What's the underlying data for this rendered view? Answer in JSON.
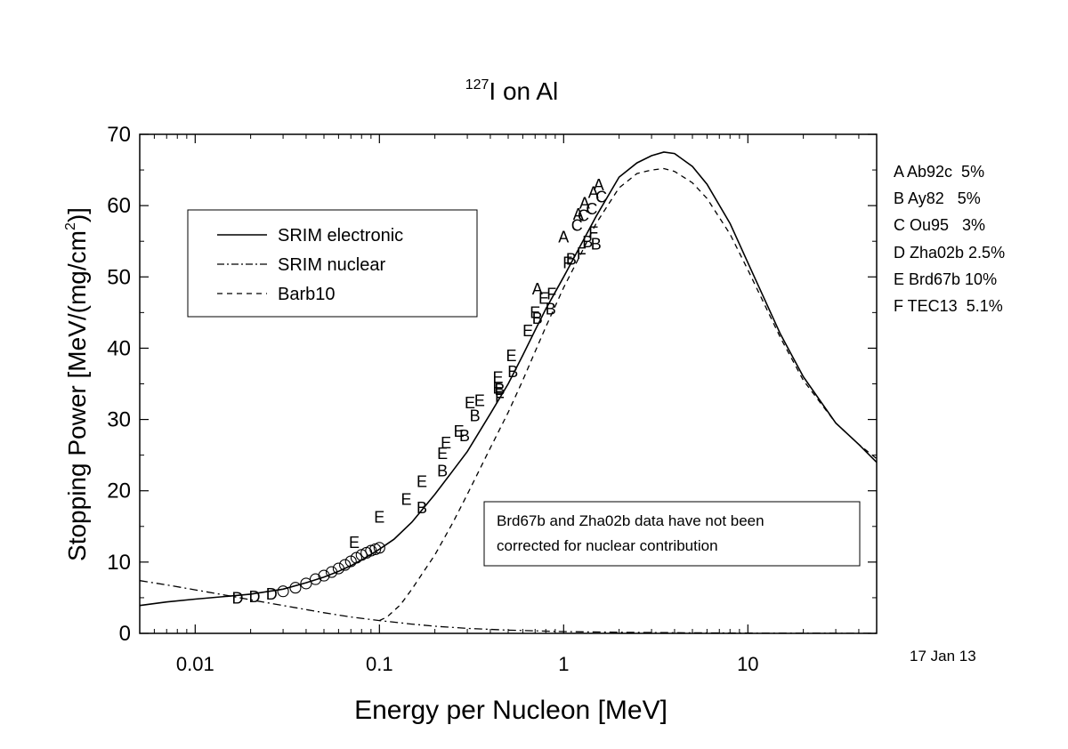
{
  "chart_data": {
    "type": "line",
    "title_superscript": "127",
    "title_main": "I on Al",
    "xlabel": "Energy per Nucleon [MeV]",
    "ylabel_main": "Stopping Power [MeV/(mg/cm",
    "ylabel_sup": "2",
    "ylabel_end": ")]",
    "x_scale": "log",
    "xlim": [
      0.005,
      50
    ],
    "ylim": [
      0,
      70
    ],
    "x_ticks": [
      {
        "v": 0.01,
        "label": "0.01"
      },
      {
        "v": 0.1,
        "label": "0.1"
      },
      {
        "v": 1,
        "label": "1"
      },
      {
        "v": 10,
        "label": "10"
      }
    ],
    "y_ticks": [
      {
        "v": 0,
        "label": "0"
      },
      {
        "v": 10,
        "label": "10"
      },
      {
        "v": 20,
        "label": "20"
      },
      {
        "v": 30,
        "label": "30"
      },
      {
        "v": 40,
        "label": "40"
      },
      {
        "v": 50,
        "label": "50"
      },
      {
        "v": 60,
        "label": "60"
      },
      {
        "v": 70,
        "label": "70"
      }
    ],
    "legend": [
      {
        "label": "SRIM electronic",
        "dash": "solid"
      },
      {
        "label": "SRIM nuclear",
        "dash": "dashdot"
      },
      {
        "label": "Barb10",
        "dash": "dashed"
      }
    ],
    "note_lines": [
      "Brd67b and Zha02b data have not been",
      "corrected for nuclear contribution"
    ],
    "datasets_legend": [
      "A Ab92c  5%",
      "B Ay82   5%",
      "C Ou95   3%",
      "D Zha02b 2.5%",
      "E Brd67b 10%",
      "F TEC13  5.1%"
    ],
    "date": "17 Jan 13",
    "series": [
      {
        "name": "SRIM electronic",
        "dash": "solid",
        "points": [
          [
            0.005,
            3.9
          ],
          [
            0.007,
            4.4
          ],
          [
            0.01,
            4.8
          ],
          [
            0.015,
            5.2
          ],
          [
            0.02,
            5.5
          ],
          [
            0.03,
            6.2
          ],
          [
            0.04,
            7.1
          ],
          [
            0.05,
            7.9
          ],
          [
            0.06,
            8.7
          ],
          [
            0.07,
            9.5
          ],
          [
            0.08,
            10.3
          ],
          [
            0.1,
            11.8
          ],
          [
            0.12,
            13.2
          ],
          [
            0.15,
            15.6
          ],
          [
            0.2,
            19.5
          ],
          [
            0.25,
            22.8
          ],
          [
            0.3,
            25.5
          ],
          [
            0.4,
            30.8
          ],
          [
            0.5,
            35.0
          ],
          [
            0.6,
            39.0
          ],
          [
            0.7,
            42.5
          ],
          [
            0.8,
            45.5
          ],
          [
            1.0,
            50.0
          ],
          [
            1.2,
            53.8
          ],
          [
            1.5,
            58.5
          ],
          [
            2.0,
            64.0
          ],
          [
            2.5,
            66.0
          ],
          [
            3.0,
            67.0
          ],
          [
            3.5,
            67.5
          ],
          [
            4.0,
            67.3
          ],
          [
            5.0,
            65.5
          ],
          [
            6.0,
            63.0
          ],
          [
            8.0,
            57.5
          ],
          [
            10.0,
            52.0
          ],
          [
            15.0,
            42.0
          ],
          [
            20.0,
            36.0
          ],
          [
            30.0,
            29.5
          ],
          [
            40.0,
            26.5
          ],
          [
            50.0,
            24.0
          ]
        ]
      },
      {
        "name": "SRIM nuclear",
        "dash": "dashdot",
        "points": [
          [
            0.005,
            7.4
          ],
          [
            0.007,
            6.8
          ],
          [
            0.01,
            6.1
          ],
          [
            0.015,
            5.3
          ],
          [
            0.02,
            4.7
          ],
          [
            0.03,
            3.9
          ],
          [
            0.05,
            2.9
          ],
          [
            0.07,
            2.3
          ],
          [
            0.1,
            1.8
          ],
          [
            0.15,
            1.3
          ],
          [
            0.2,
            1.0
          ],
          [
            0.3,
            0.7
          ],
          [
            0.5,
            0.45
          ],
          [
            1.0,
            0.25
          ],
          [
            2.0,
            0.15
          ],
          [
            5.0,
            0.08
          ],
          [
            10.0,
            0.04
          ],
          [
            50.0,
            0.01
          ]
        ]
      },
      {
        "name": "Barb10",
        "dash": "dashed",
        "points": [
          [
            0.1,
            1.8
          ],
          [
            0.11,
            2.3
          ],
          [
            0.13,
            4.0
          ],
          [
            0.15,
            6.2
          ],
          [
            0.2,
            11.0
          ],
          [
            0.25,
            15.5
          ],
          [
            0.3,
            19.5
          ],
          [
            0.4,
            26.0
          ],
          [
            0.5,
            31.0
          ],
          [
            0.6,
            35.5
          ],
          [
            0.7,
            39.5
          ],
          [
            0.8,
            43.0
          ],
          [
            1.0,
            48.5
          ],
          [
            1.2,
            52.5
          ],
          [
            1.5,
            57.5
          ],
          [
            2.0,
            62.5
          ],
          [
            2.5,
            64.5
          ],
          [
            3.0,
            65.0
          ],
          [
            3.5,
            65.2
          ],
          [
            4.0,
            64.8
          ],
          [
            5.0,
            63.2
          ],
          [
            6.0,
            61.0
          ],
          [
            8.0,
            56.0
          ],
          [
            10.0,
            51.0
          ],
          [
            15.0,
            41.5
          ],
          [
            20.0,
            35.5
          ],
          [
            30.0,
            29.5
          ],
          [
            40.0,
            26.5
          ],
          [
            50.0,
            24.5
          ]
        ]
      }
    ],
    "data_points": [
      {
        "m": "D",
        "x": 0.017,
        "y": 4.9
      },
      {
        "m": "D",
        "x": 0.021,
        "y": 5.1
      },
      {
        "m": "D",
        "x": 0.026,
        "y": 5.5
      },
      {
        "m": "O",
        "x": 0.03,
        "y": 5.9
      },
      {
        "m": "O",
        "x": 0.035,
        "y": 6.4
      },
      {
        "m": "O",
        "x": 0.04,
        "y": 7.0
      },
      {
        "m": "O",
        "x": 0.045,
        "y": 7.6
      },
      {
        "m": "O",
        "x": 0.05,
        "y": 8.1
      },
      {
        "m": "O",
        "x": 0.055,
        "y": 8.6
      },
      {
        "m": "O",
        "x": 0.06,
        "y": 9.1
      },
      {
        "m": "O",
        "x": 0.065,
        "y": 9.6
      },
      {
        "m": "O",
        "x": 0.07,
        "y": 10.1
      },
      {
        "m": "O",
        "x": 0.075,
        "y": 10.6
      },
      {
        "m": "O",
        "x": 0.08,
        "y": 11.0
      },
      {
        "m": "O",
        "x": 0.085,
        "y": 11.3
      },
      {
        "m": "O",
        "x": 0.09,
        "y": 11.6
      },
      {
        "m": "O",
        "x": 0.095,
        "y": 11.8
      },
      {
        "m": "O",
        "x": 0.1,
        "y": 12.0
      },
      {
        "m": "E",
        "x": 0.073,
        "y": 12.7
      },
      {
        "m": "E",
        "x": 0.1,
        "y": 16.3
      },
      {
        "m": "E",
        "x": 0.14,
        "y": 18.8
      },
      {
        "m": "E",
        "x": 0.17,
        "y": 21.3
      },
      {
        "m": "E",
        "x": 0.22,
        "y": 25.2
      },
      {
        "m": "E",
        "x": 0.23,
        "y": 26.7
      },
      {
        "m": "E",
        "x": 0.27,
        "y": 28.3
      },
      {
        "m": "E",
        "x": 0.31,
        "y": 32.3
      },
      {
        "m": "E",
        "x": 0.35,
        "y": 32.6
      },
      {
        "m": "E",
        "x": 0.44,
        "y": 35.9
      },
      {
        "m": "E",
        "x": 0.44,
        "y": 34.4
      },
      {
        "m": "E",
        "x": 0.52,
        "y": 38.9
      },
      {
        "m": "E",
        "x": 0.64,
        "y": 42.4
      },
      {
        "m": "E",
        "x": 0.7,
        "y": 45.0
      },
      {
        "m": "E",
        "x": 0.78,
        "y": 47.0
      },
      {
        "m": "B",
        "x": 0.17,
        "y": 17.6
      },
      {
        "m": "B",
        "x": 0.22,
        "y": 22.8
      },
      {
        "m": "B",
        "x": 0.29,
        "y": 27.7
      },
      {
        "m": "B",
        "x": 0.33,
        "y": 30.5
      },
      {
        "m": "B",
        "x": 0.45,
        "y": 34.2
      },
      {
        "m": "B",
        "x": 0.53,
        "y": 36.7
      },
      {
        "m": "B",
        "x": 0.72,
        "y": 44.2
      },
      {
        "m": "B",
        "x": 0.85,
        "y": 45.5
      },
      {
        "m": "B",
        "x": 1.1,
        "y": 52.5
      },
      {
        "m": "B",
        "x": 1.35,
        "y": 54.9
      },
      {
        "m": "B",
        "x": 1.5,
        "y": 54.6
      },
      {
        "m": "A",
        "x": 0.72,
        "y": 48.3
      },
      {
        "m": "A",
        "x": 1.0,
        "y": 55.6
      },
      {
        "m": "A",
        "x": 1.2,
        "y": 58.8
      },
      {
        "m": "A",
        "x": 1.3,
        "y": 60.3
      },
      {
        "m": "A",
        "x": 1.45,
        "y": 61.8
      },
      {
        "m": "A",
        "x": 1.55,
        "y": 62.9
      },
      {
        "m": "C",
        "x": 1.18,
        "y": 57.2
      },
      {
        "m": "C",
        "x": 1.28,
        "y": 58.6
      },
      {
        "m": "C",
        "x": 1.42,
        "y": 59.5
      },
      {
        "m": "C",
        "x": 1.6,
        "y": 61.2
      },
      {
        "m": "F",
        "x": 0.45,
        "y": 33.1
      },
      {
        "m": "F",
        "x": 0.86,
        "y": 47.6
      },
      {
        "m": "F",
        "x": 1.05,
        "y": 52.0
      },
      {
        "m": "F",
        "x": 1.25,
        "y": 53.3
      },
      {
        "m": "F",
        "x": 1.45,
        "y": 56.2
      }
    ]
  }
}
